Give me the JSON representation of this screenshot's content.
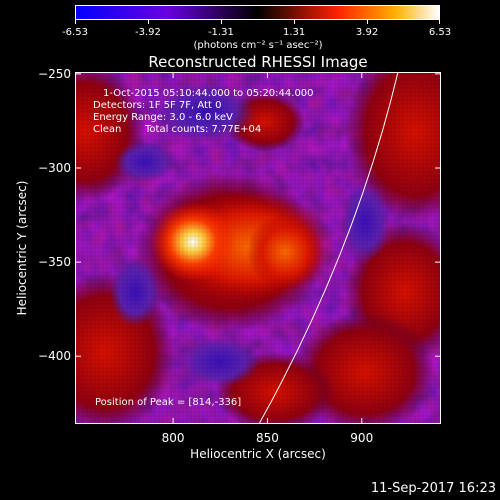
{
  "colorbar": {
    "ticks": [
      "-6.53",
      "-3.92",
      "-1.31",
      "1.31",
      "3.92",
      "6.53"
    ],
    "units": "(photons cm⁻² s⁻¹ asec⁻²)",
    "range": [
      -6.53,
      6.53
    ]
  },
  "plot": {
    "title": "Reconstructed RHESSI Image",
    "time_range": "1-Oct-2015 05:10:44.000 to 05:20:44.000",
    "detectors": "Detectors: 1F 5F 7F, Att 0",
    "energy": "Energy Range: 3.0 - 6.0 keV",
    "method": "Clean",
    "total_counts": "Total counts: 7.77E+04",
    "peak": "Position of Peak = [814,-336]"
  },
  "axes": {
    "xlabel": "Heliocentric X (arcsec)",
    "ylabel": "Heliocentric Y (arcsec)",
    "xticks": [
      "800",
      "850",
      "900"
    ],
    "yticks": [
      "-250",
      "-300",
      "-350",
      "-400"
    ],
    "xlim": [
      748,
      942
    ],
    "ylim": [
      -436,
      -249
    ]
  },
  "footer": {
    "timestamp": "11-Sep-2017 16:23"
  },
  "colors": {
    "background": "#000000",
    "limb": "#ffffff"
  }
}
